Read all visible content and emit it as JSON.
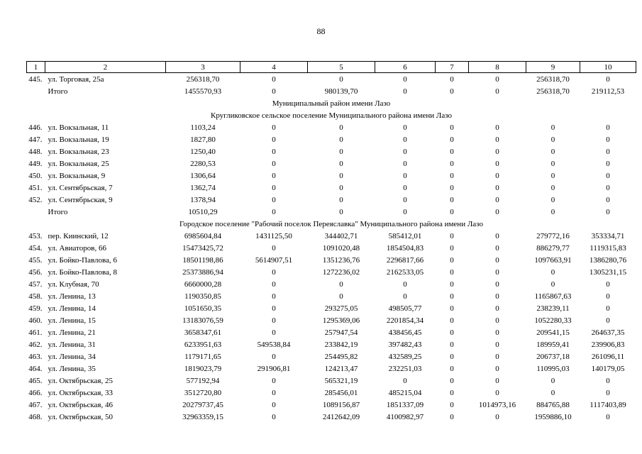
{
  "page_number": "88",
  "column_headers": [
    "1",
    "2",
    "3",
    "4",
    "5",
    "6",
    "7",
    "8",
    "9",
    "10"
  ],
  "rows": [
    {
      "kind": "row",
      "cells": [
        "445.",
        "ул. Торговая, 25а",
        "256318,70",
        "0",
        "0",
        "0",
        "0",
        "0",
        "256318,70",
        "0"
      ]
    },
    {
      "kind": "row",
      "cells": [
        "",
        "Итого",
        "1455570,93",
        "0",
        "980139,70",
        "0",
        "0",
        "0",
        "256318,70",
        "219112,53"
      ]
    },
    {
      "kind": "section",
      "text": "Муниципальный район имени Лазо"
    },
    {
      "kind": "section",
      "text": "Кругликовское сельское поселение Муниципального района имени Лазо"
    },
    {
      "kind": "row",
      "cells": [
        "446.",
        "ул. Вокзальная, 11",
        "1103,24",
        "0",
        "0",
        "0",
        "0",
        "0",
        "0",
        "0"
      ]
    },
    {
      "kind": "row",
      "cells": [
        "447.",
        "ул. Вокзальная, 19",
        "1827,80",
        "0",
        "0",
        "0",
        "0",
        "0",
        "0",
        "0"
      ]
    },
    {
      "kind": "row",
      "cells": [
        "448.",
        "ул. Вокзальная, 23",
        "1250,40",
        "0",
        "0",
        "0",
        "0",
        "0",
        "0",
        "0"
      ]
    },
    {
      "kind": "row",
      "cells": [
        "449.",
        "ул. Вокзальная, 25",
        "2280,53",
        "0",
        "0",
        "0",
        "0",
        "0",
        "0",
        "0"
      ]
    },
    {
      "kind": "row",
      "cells": [
        "450.",
        "ул. Вокзальная, 9",
        "1306,64",
        "0",
        "0",
        "0",
        "0",
        "0",
        "0",
        "0"
      ]
    },
    {
      "kind": "row",
      "cells": [
        "451.",
        "ул. Сентябрьская, 7",
        "1362,74",
        "0",
        "0",
        "0",
        "0",
        "0",
        "0",
        "0"
      ]
    },
    {
      "kind": "row",
      "cells": [
        "452.",
        "ул. Сентябрьская, 9",
        "1378,94",
        "0",
        "0",
        "0",
        "0",
        "0",
        "0",
        "0"
      ]
    },
    {
      "kind": "row",
      "cells": [
        "",
        "Итого",
        "10510,29",
        "0",
        "0",
        "0",
        "0",
        "0",
        "0",
        "0"
      ]
    },
    {
      "kind": "section",
      "text": "Городское поселение \"Рабочий поселок Переяславка\" Муниципального района имени Лазо"
    },
    {
      "kind": "row",
      "cells": [
        "453.",
        "пер. Киинский, 12",
        "6985604,84",
        "1431125,50",
        "344402,71",
        "585412,01",
        "0",
        "0",
        "279772,16",
        "353334,71"
      ]
    },
    {
      "kind": "row",
      "cells": [
        "454.",
        "ул. Авиаторов, 66",
        "15473425,72",
        "0",
        "1091020,48",
        "1854504,83",
        "0",
        "0",
        "886279,77",
        "1119315,83"
      ]
    },
    {
      "kind": "row",
      "cells": [
        "455.",
        "ул. Бойко-Павлова, 6",
        "18501198,86",
        "5614907,51",
        "1351236,76",
        "2296817,66",
        "0",
        "0",
        "1097663,91",
        "1386280,76"
      ]
    },
    {
      "kind": "row",
      "cells": [
        "456.",
        "ул. Бойко-Павлова, 8",
        "25373886,94",
        "0",
        "1272236,02",
        "2162533,05",
        "0",
        "0",
        "0",
        "1305231,15"
      ]
    },
    {
      "kind": "row",
      "cells": [
        "457.",
        "ул. Клубная, 70",
        "6660000,28",
        "0",
        "0",
        "0",
        "0",
        "0",
        "0",
        "0"
      ]
    },
    {
      "kind": "row",
      "cells": [
        "458.",
        "ул. Ленина, 13",
        "1190350,85",
        "0",
        "0",
        "0",
        "0",
        "0",
        "1165867,63",
        "0"
      ]
    },
    {
      "kind": "row",
      "cells": [
        "459.",
        "ул. Ленина, 14",
        "1051650,35",
        "0",
        "293275,05",
        "498505,77",
        "0",
        "0",
        "238239,11",
        "0"
      ]
    },
    {
      "kind": "row",
      "cells": [
        "460.",
        "ул. Ленина, 15",
        "13183076,59",
        "0",
        "1295369,06",
        "2201854,34",
        "0",
        "0",
        "1052280,33",
        "0"
      ]
    },
    {
      "kind": "row",
      "cells": [
        "461.",
        "ул. Ленина, 21",
        "3658347,61",
        "0",
        "257947,54",
        "438456,45",
        "0",
        "0",
        "209541,15",
        "264637,35"
      ]
    },
    {
      "kind": "row",
      "cells": [
        "462.",
        "ул. Ленина, 31",
        "6233951,63",
        "549538,84",
        "233842,19",
        "397482,43",
        "0",
        "0",
        "189959,41",
        "239906,83"
      ]
    },
    {
      "kind": "row",
      "cells": [
        "463.",
        "ул. Ленина, 34",
        "1179171,65",
        "0",
        "254495,82",
        "432589,25",
        "0",
        "0",
        "206737,18",
        "261096,11"
      ]
    },
    {
      "kind": "row",
      "cells": [
        "464.",
        "ул. Ленина, 35",
        "1819023,79",
        "291906,81",
        "124213,47",
        "232251,03",
        "0",
        "0",
        "110995,03",
        "140179,05"
      ]
    },
    {
      "kind": "row",
      "cells": [
        "465.",
        "ул. Октябрьская, 25",
        "577192,94",
        "0",
        "565321,19",
        "0",
        "0",
        "0",
        "0",
        "0"
      ]
    },
    {
      "kind": "row",
      "cells": [
        "466.",
        "ул. Октябрьская, 33",
        "3512720,80",
        "0",
        "285456,01",
        "485215,04",
        "0",
        "0",
        "0",
        "0"
      ]
    },
    {
      "kind": "row",
      "cells": [
        "467.",
        "ул. Октябрьская, 46",
        "20279737,45",
        "0",
        "1089156,87",
        "1851337,09",
        "0",
        "1014973,16",
        "884765,88",
        "1117403,89"
      ]
    },
    {
      "kind": "row",
      "cells": [
        "468.",
        "ул. Октябрьская, 50",
        "32963359,15",
        "0",
        "2412642,09",
        "4100982,97",
        "0",
        "0",
        "1959886,10",
        "0"
      ]
    }
  ]
}
